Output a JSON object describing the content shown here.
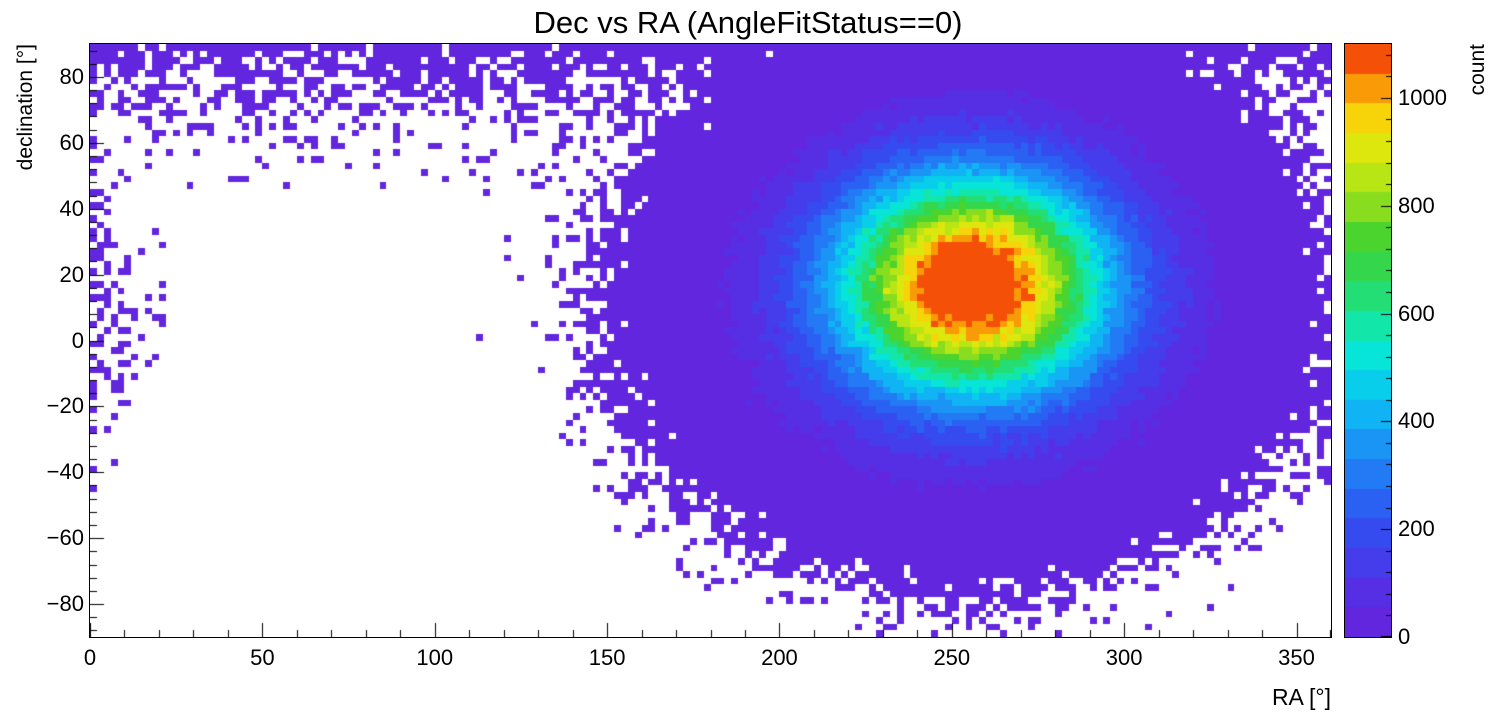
{
  "canvas": {
    "background": "#ffffff",
    "frame_color": "#000000",
    "text_color": "#000000"
  },
  "chart_data": {
    "type": "heatmap",
    "title": "Dec vs RA (AngleFitStatus==0)",
    "xlabel": "RA [°]",
    "ylabel": "declination [°]",
    "zlabel": "count",
    "xlim": [
      0,
      360
    ],
    "ylim": [
      -90,
      90
    ],
    "zlim": [
      0,
      1100
    ],
    "grid": false,
    "legend": "colorbar-right",
    "x_ticks": {
      "values": [
        0,
        50,
        100,
        150,
        200,
        250,
        300,
        350
      ],
      "labels": [
        "0",
        "50",
        "100",
        "150",
        "200",
        "250",
        "300",
        "350"
      ],
      "minor_step": 10
    },
    "y_ticks": {
      "values": [
        -80,
        -60,
        -40,
        -20,
        0,
        20,
        40,
        60,
        80
      ],
      "labels": [
        "−80",
        "−60",
        "−40",
        "−20",
        "0",
        "20",
        "40",
        "60",
        "80"
      ],
      "minor_step": 4
    },
    "z_ticks": {
      "values": [
        0,
        200,
        400,
        600,
        800,
        1000
      ],
      "labels": [
        "0",
        "200",
        "400",
        "600",
        "800",
        "1000"
      ],
      "minor_step": 40
    },
    "bins": {
      "nx": 180,
      "ny": 90,
      "ra_bin_deg": 2,
      "dec_bin_deg": 2
    },
    "distribution": {
      "description": "2D histogram of event directions. Dense Gaussian core centered near RA 256°, Dec +17° peaking around 1100+ counts per bin (red), surrounded by concentric yellow/green/cyan/blue rings; broad diffuse violet halo covering roughly RA 150–360° and Dec −70° to +90° with ragged Poisson-speckled edges; sparse polar-cap background at Dec above ~50° across all RA (including the far left edge); region RA < ~150° below Dec ~40° is empty.",
      "core": {
        "ra_center": 256,
        "dec_center": 17,
        "sigma_ra": 27,
        "sigma_dec": 23,
        "peak_counts": 1150
      },
      "halo": {
        "ra_center": 253,
        "dec_center": 8,
        "sigma_ra": 52,
        "sigma_dec": 42,
        "peak_counts": 60,
        "falloff_power": 1.5
      },
      "polar_cap": {
        "dec_min_deg": 45,
        "amplitude": 2.2,
        "scale_deg": 12
      },
      "render_seed": 1711
    },
    "palette": {
      "n_levels": 20,
      "stops": [
        [
          0.0,
          "#6a21dc"
        ],
        [
          0.08,
          "#5530e6"
        ],
        [
          0.16,
          "#3845ee"
        ],
        [
          0.24,
          "#2767f3"
        ],
        [
          0.32,
          "#1b92f5"
        ],
        [
          0.4,
          "#0bc2f2"
        ],
        [
          0.47,
          "#06e4dd"
        ],
        [
          0.53,
          "#14e6a4"
        ],
        [
          0.6,
          "#2ad95b"
        ],
        [
          0.67,
          "#45d32e"
        ],
        [
          0.73,
          "#8edf1c"
        ],
        [
          0.8,
          "#cfe90f"
        ],
        [
          0.86,
          "#f4e50a"
        ],
        [
          0.905,
          "#f9b207"
        ],
        [
          0.95,
          "#fa7b06"
        ],
        [
          0.98,
          "#f44708"
        ],
        [
          1.0,
          "#ea170b"
        ]
      ]
    }
  }
}
